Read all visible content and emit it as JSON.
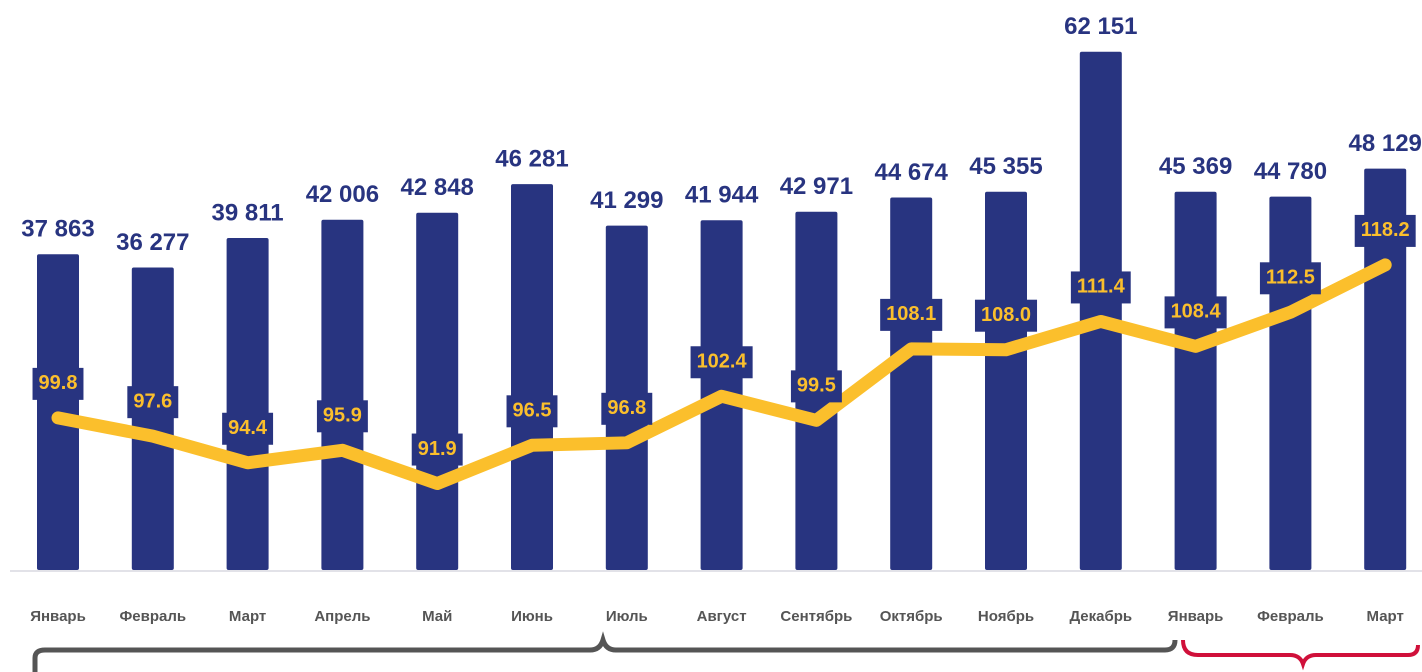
{
  "chart_data": {
    "type": "bar-line",
    "categories": [
      "Январь",
      "Февраль",
      "Март",
      "Апрель",
      "Май",
      "Июнь",
      "Июль",
      "Август",
      "Сентябрь",
      "Октябрь",
      "Ноябрь",
      "Декабрь",
      "Январь",
      "Февраль",
      "Март"
    ],
    "series": [
      {
        "type": "bar",
        "color": "#283480",
        "values": [
          37863,
          36277,
          39811,
          42006,
          42848,
          46281,
          41299,
          41944,
          42971,
          44674,
          45355,
          62151,
          45369,
          44780,
          48129
        ],
        "value_labels": [
          "37 863",
          "36 277",
          "39 811",
          "42 006",
          "42 848",
          "46 281",
          "41 299",
          "41 944",
          "42 971",
          "44 674",
          "45 355",
          "62 151",
          "45 369",
          "44 780",
          "48 129"
        ]
      },
      {
        "type": "line",
        "axis": "y2",
        "color": "#fbbf2c",
        "values": [
          99.8,
          97.6,
          94.4,
          95.9,
          91.9,
          96.5,
          96.8,
          102.4,
          99.5,
          108.1,
          108.0,
          111.4,
          108.4,
          112.5,
          118.2
        ],
        "value_labels": [
          "99.8",
          "97.6",
          "94.4",
          "95.9",
          "91.9",
          "96.5",
          "96.8",
          "102.4",
          "99.5",
          "108.1",
          "108.0",
          "111.4",
          "108.4",
          "112.5",
          "118.2"
        ]
      }
    ],
    "ylim": [
      0,
      65000
    ],
    "y2lim": [
      81.5,
      146.7
    ]
  }
}
